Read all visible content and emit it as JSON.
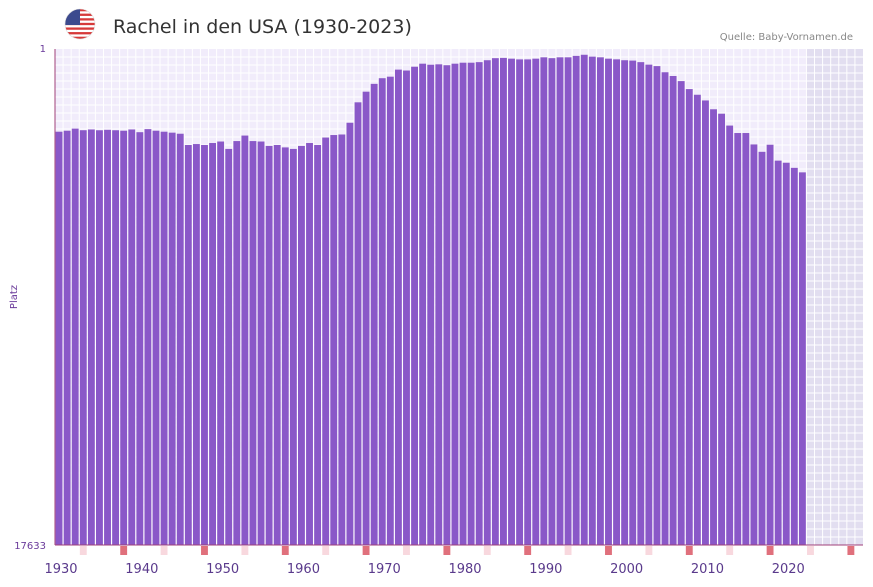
{
  "header": {
    "title": "Rachel in den USA (1930-2023)",
    "source": "Quelle: Baby-Vornamen.de",
    "flag_icon": "usa-flag-icon"
  },
  "colors": {
    "bar": "#8a58c8",
    "plot_bg": "#f1ecfb",
    "grid": "#ffffff",
    "future_bg": "#e2def0",
    "axis": "#a0407a",
    "decade_mark": "#e0707c",
    "minor_mark": "#f8d8de"
  },
  "chart_data": {
    "type": "bar",
    "title": "Rachel in den USA (1930-2023)",
    "ylabel": "Platz",
    "xlabel": "",
    "y_axis_inverted": true,
    "ylim": [
      1,
      17633
    ],
    "y_tick_labels": [
      "1",
      "17633"
    ],
    "xlim": [
      1929.5,
      2029.5
    ],
    "x_tick_labels": [
      "1930",
      "1940",
      "1950",
      "1960",
      "1970",
      "1980",
      "1990",
      "2000",
      "2010",
      "2020"
    ],
    "x": [
      1930,
      1931,
      1932,
      1933,
      1934,
      1935,
      1936,
      1937,
      1938,
      1939,
      1940,
      1941,
      1942,
      1943,
      1944,
      1945,
      1946,
      1947,
      1948,
      1949,
      1950,
      1951,
      1952,
      1953,
      1954,
      1955,
      1956,
      1957,
      1958,
      1959,
      1960,
      1961,
      1962,
      1963,
      1964,
      1965,
      1966,
      1967,
      1968,
      1969,
      1970,
      1971,
      1972,
      1973,
      1974,
      1975,
      1976,
      1977,
      1978,
      1979,
      1980,
      1981,
      1982,
      1983,
      1984,
      1985,
      1986,
      1987,
      1988,
      1989,
      1990,
      1991,
      1992,
      1993,
      1994,
      1995,
      1996,
      1997,
      1998,
      1999,
      2000,
      2001,
      2002,
      2003,
      2004,
      2005,
      2006,
      2007,
      2008,
      2009,
      2010,
      2011,
      2012,
      2013,
      2014,
      2015,
      2016,
      2017,
      2018,
      2019,
      2020,
      2021,
      2022,
      2023
    ],
    "values": [
      2941,
      2906,
      2832,
      2888,
      2860,
      2889,
      2873,
      2889,
      2906,
      2860,
      2958,
      2849,
      2906,
      2941,
      2975,
      3013,
      3414,
      3380,
      3414,
      3343,
      3290,
      3553,
      3274,
      3078,
      3274,
      3290,
      3446,
      3414,
      3499,
      3553,
      3446,
      3343,
      3414,
      3147,
      3059,
      3040,
      2623,
      1896,
      1518,
      1240,
      1039,
      985,
      734,
      766,
      631,
      523,
      560,
      546,
      577,
      523,
      488,
      488,
      468,
      400,
      327,
      317,
      345,
      370,
      370,
      345,
      296,
      327,
      296,
      296,
      246,
      206,
      273,
      296,
      345,
      368,
      400,
      413,
      468,
      557,
      609,
      828,
      961,
      1142,
      1426,
      1627,
      1830,
      2143,
      2300,
      2723,
      2988,
      2988,
      3394,
      3656,
      3404,
      3969,
      4045,
      4226,
      4386,
      null
    ],
    "shaded_future_from": 2023
  }
}
